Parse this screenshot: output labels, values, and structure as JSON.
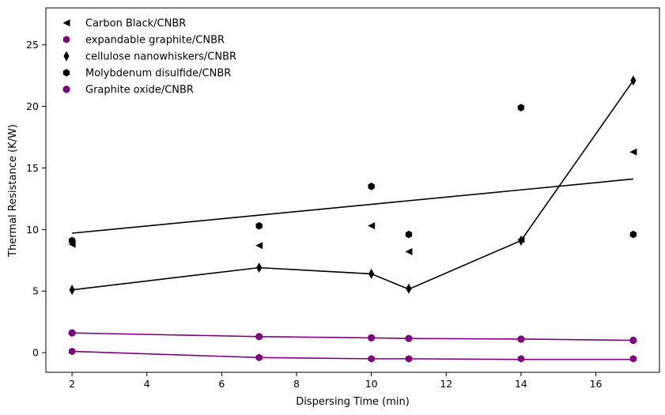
{
  "chart_data": {
    "type": "scatter",
    "title": "",
    "xlabel": "Dispersing Time (min)",
    "ylabel": "Thermal Resistance (K/W)",
    "xlim": [
      1.3,
      17.7
    ],
    "ylim": [
      -1.6,
      28.0
    ],
    "xticks": [
      2,
      4,
      6,
      8,
      10,
      12,
      14,
      16
    ],
    "yticks": [
      0,
      5,
      10,
      15,
      20,
      25
    ],
    "grid": false,
    "legend_position": "top-left",
    "series": [
      {
        "name": "Carbon Black/CNBR",
        "marker": "triangle-left",
        "color": "#000000",
        "x": [
          2,
          7,
          10,
          11,
          14,
          17
        ],
        "y": [
          8.8,
          8.7,
          10.3,
          8.2,
          9.2,
          16.3
        ]
      },
      {
        "name": "expandable graphite/CNBR",
        "marker": "hexagon",
        "color": "#800080",
        "x": [
          2,
          7,
          10,
          11,
          14,
          17
        ],
        "y": [
          0.1,
          -0.4,
          -0.5,
          -0.5,
          -0.5,
          -0.5
        ]
      },
      {
        "name": "cellulose nanowhiskers/CNBR",
        "marker": "thin-diamond",
        "color": "#000000",
        "x": [
          2,
          7,
          10,
          11,
          14,
          17
        ],
        "y": [
          5.1,
          6.9,
          6.4,
          5.2,
          9.1,
          22.1
        ]
      },
      {
        "name": "Molybdenum disulfide/CNBR",
        "marker": "hexagon",
        "color": "#000000",
        "x": [
          2,
          7,
          10,
          11,
          14,
          17
        ],
        "y": [
          9.1,
          10.3,
          13.5,
          9.6,
          19.9,
          9.6
        ]
      },
      {
        "name": "Graphite oxide/CNBR",
        "marker": "circle",
        "color": "#800080",
        "x": [
          2,
          7,
          10,
          11,
          14,
          17
        ],
        "y": [
          1.6,
          1.3,
          1.2,
          1.15,
          1.1,
          1.0
        ]
      }
    ],
    "lines": [
      {
        "color": "#000000",
        "x": [
          2,
          17
        ],
        "y": [
          9.7,
          14.1
        ]
      },
      {
        "color": "#000000",
        "x": [
          2,
          7,
          10,
          11,
          14,
          17
        ],
        "y": [
          5.1,
          6.9,
          6.4,
          5.15,
          9.1,
          22.1
        ]
      },
      {
        "color": "#800080",
        "x": [
          2,
          7,
          10,
          11,
          14,
          17
        ],
        "y": [
          1.6,
          1.3,
          1.2,
          1.15,
          1.1,
          1.0
        ]
      },
      {
        "color": "#800080",
        "x": [
          2,
          7,
          10,
          11,
          14,
          17
        ],
        "y": [
          0.1,
          -0.4,
          -0.5,
          -0.5,
          -0.55,
          -0.55
        ]
      }
    ]
  }
}
